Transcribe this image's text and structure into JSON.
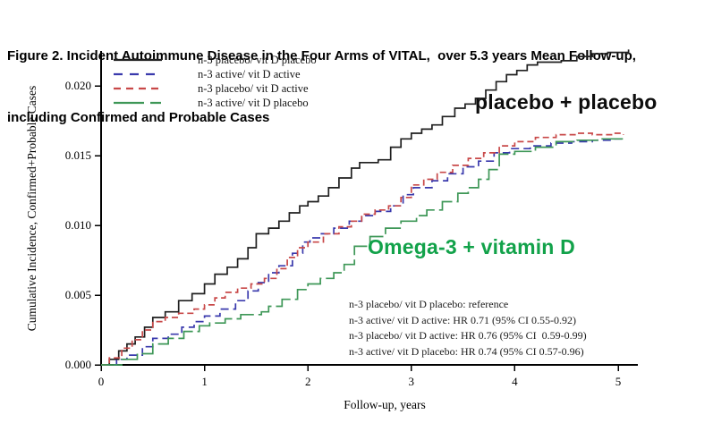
{
  "figure": {
    "title_line1": "Figure 2. Incident Autoimmune Disease in the Four Arms of VITAL,  over 5.3 years Mean Follow-up,",
    "title_line2": "including Confirmed and Probable Cases"
  },
  "chart_data": {
    "type": "line",
    "subtype": "step-cumulative-incidence",
    "title": "Figure 2. Incident Autoimmune Disease in the Four Arms of VITAL, over 5.3 years Mean Follow-up, including Confirmed and Probable Cases",
    "xlabel": "Follow-up, years",
    "ylabel": "Cumulative Incidence, Confirmed+Probable Cases",
    "xlim": [
      0,
      5.2
    ],
    "ylim": [
      0,
      0.0225
    ],
    "grid": false,
    "legend_position": "top-left",
    "x_ticks": [
      0,
      1,
      2,
      3,
      4,
      5
    ],
    "x_tick_labels": [
      "0",
      "1",
      "2",
      "3",
      "4",
      "5"
    ],
    "y_ticks": [
      0.0,
      0.005,
      0.01,
      0.015,
      0.02
    ],
    "y_tick_labels": [
      "0.000",
      "0.005",
      "0.010",
      "0.015",
      "0.020"
    ],
    "series": [
      {
        "id": "n3-placebo-vitd-placebo",
        "name": "n-3 placebo/ vit D placebo",
        "color": "#1f1f1f",
        "dash": "solid",
        "points": [
          [
            0,
            0
          ],
          [
            0.08,
            0.0004
          ],
          [
            0.17,
            0.001
          ],
          [
            0.25,
            0.0015
          ],
          [
            0.33,
            0.002
          ],
          [
            0.42,
            0.0027
          ],
          [
            0.5,
            0.0034
          ],
          [
            0.62,
            0.0038
          ],
          [
            0.75,
            0.0046
          ],
          [
            0.88,
            0.0051
          ],
          [
            1.0,
            0.0058
          ],
          [
            1.1,
            0.0065
          ],
          [
            1.22,
            0.007
          ],
          [
            1.32,
            0.0076
          ],
          [
            1.42,
            0.0084
          ],
          [
            1.5,
            0.0094
          ],
          [
            1.62,
            0.0098
          ],
          [
            1.72,
            0.0103
          ],
          [
            1.82,
            0.0109
          ],
          [
            1.92,
            0.0114
          ],
          [
            2.0,
            0.0117
          ],
          [
            2.1,
            0.0121
          ],
          [
            2.2,
            0.0127
          ],
          [
            2.3,
            0.0134
          ],
          [
            2.42,
            0.0141
          ],
          [
            2.5,
            0.0145
          ],
          [
            2.68,
            0.0147
          ],
          [
            2.8,
            0.0156
          ],
          [
            2.9,
            0.0162
          ],
          [
            3.0,
            0.0166
          ],
          [
            3.1,
            0.0169
          ],
          [
            3.2,
            0.0172
          ],
          [
            3.3,
            0.0178
          ],
          [
            3.42,
            0.0184
          ],
          [
            3.52,
            0.0187
          ],
          [
            3.62,
            0.0191
          ],
          [
            3.72,
            0.0197
          ],
          [
            3.82,
            0.0203
          ],
          [
            3.92,
            0.0208
          ],
          [
            4.02,
            0.0211
          ],
          [
            4.12,
            0.0215
          ],
          [
            4.22,
            0.0217
          ],
          [
            4.45,
            0.0218
          ],
          [
            4.6,
            0.0221
          ],
          [
            4.75,
            0.0223
          ],
          [
            4.9,
            0.0224
          ],
          [
            5.1,
            0.0226
          ]
        ]
      },
      {
        "id": "n3-active-vitd-active",
        "name": "n-3 active/ vit D active",
        "color": "#3a3aad",
        "dash": "dashed",
        "points": [
          [
            0,
            0
          ],
          [
            0.15,
            0.0004
          ],
          [
            0.25,
            0.0007
          ],
          [
            0.4,
            0.0013
          ],
          [
            0.5,
            0.0019
          ],
          [
            0.65,
            0.0022
          ],
          [
            0.78,
            0.0027
          ],
          [
            0.9,
            0.0031
          ],
          [
            1.0,
            0.0035
          ],
          [
            1.15,
            0.004
          ],
          [
            1.3,
            0.0046
          ],
          [
            1.42,
            0.0053
          ],
          [
            1.52,
            0.0059
          ],
          [
            1.62,
            0.0066
          ],
          [
            1.72,
            0.0071
          ],
          [
            1.85,
            0.008
          ],
          [
            1.95,
            0.0088
          ],
          [
            2.02,
            0.0091
          ],
          [
            2.12,
            0.0094
          ],
          [
            2.25,
            0.0098
          ],
          [
            2.4,
            0.0103
          ],
          [
            2.52,
            0.0107
          ],
          [
            2.65,
            0.011
          ],
          [
            2.8,
            0.0114
          ],
          [
            2.92,
            0.0122
          ],
          [
            3.02,
            0.0127
          ],
          [
            3.2,
            0.0132
          ],
          [
            3.35,
            0.0137
          ],
          [
            3.5,
            0.0142
          ],
          [
            3.65,
            0.0146
          ],
          [
            3.8,
            0.0152
          ],
          [
            3.95,
            0.0155
          ],
          [
            4.15,
            0.0157
          ],
          [
            4.35,
            0.0159
          ],
          [
            4.55,
            0.016
          ],
          [
            4.75,
            0.0161
          ],
          [
            4.95,
            0.0162
          ],
          [
            5.05,
            0.0163
          ]
        ]
      },
      {
        "id": "n3-placebo-vitd-active",
        "name": "n-3 placebo/ vit D active",
        "color": "#c84848",
        "dash": "dashed-short",
        "points": [
          [
            0,
            0
          ],
          [
            0.08,
            0.0005
          ],
          [
            0.2,
            0.0012
          ],
          [
            0.3,
            0.0018
          ],
          [
            0.4,
            0.0025
          ],
          [
            0.5,
            0.0031
          ],
          [
            0.62,
            0.0034
          ],
          [
            0.75,
            0.0037
          ],
          [
            0.9,
            0.004
          ],
          [
            1.0,
            0.0043
          ],
          [
            1.1,
            0.0048
          ],
          [
            1.2,
            0.0052
          ],
          [
            1.32,
            0.0055
          ],
          [
            1.45,
            0.0058
          ],
          [
            1.58,
            0.0062
          ],
          [
            1.7,
            0.0069
          ],
          [
            1.8,
            0.0077
          ],
          [
            1.9,
            0.0084
          ],
          [
            2.0,
            0.0088
          ],
          [
            2.15,
            0.0094
          ],
          [
            2.3,
            0.0099
          ],
          [
            2.42,
            0.0103
          ],
          [
            2.52,
            0.0108
          ],
          [
            2.65,
            0.0111
          ],
          [
            2.78,
            0.0114
          ],
          [
            2.9,
            0.012
          ],
          [
            3.0,
            0.0129
          ],
          [
            3.12,
            0.0133
          ],
          [
            3.25,
            0.0138
          ],
          [
            3.4,
            0.0143
          ],
          [
            3.55,
            0.0148
          ],
          [
            3.7,
            0.0152
          ],
          [
            3.85,
            0.0157
          ],
          [
            4.0,
            0.016
          ],
          [
            4.2,
            0.0163
          ],
          [
            4.4,
            0.0165
          ],
          [
            4.6,
            0.0166
          ],
          [
            4.75,
            0.0165
          ],
          [
            4.95,
            0.0166
          ],
          [
            5.05,
            0.0165
          ]
        ]
      },
      {
        "id": "n3-active-vitd-placebo",
        "name": "n-3 active/ vit D placebo",
        "color": "#3e9757",
        "dash": "long-dash",
        "points": [
          [
            0,
            0
          ],
          [
            0.2,
            0.0004
          ],
          [
            0.35,
            0.0008
          ],
          [
            0.5,
            0.0015
          ],
          [
            0.65,
            0.0019
          ],
          [
            0.8,
            0.0024
          ],
          [
            0.95,
            0.0028
          ],
          [
            1.05,
            0.003
          ],
          [
            1.2,
            0.0033
          ],
          [
            1.35,
            0.0036
          ],
          [
            1.55,
            0.0038
          ],
          [
            1.62,
            0.0042
          ],
          [
            1.75,
            0.0047
          ],
          [
            1.9,
            0.0054
          ],
          [
            2.0,
            0.0058
          ],
          [
            2.12,
            0.0062
          ],
          [
            2.25,
            0.0066
          ],
          [
            2.35,
            0.0072
          ],
          [
            2.45,
            0.0085
          ],
          [
            2.6,
            0.0092
          ],
          [
            2.75,
            0.0098
          ],
          [
            2.9,
            0.0103
          ],
          [
            3.05,
            0.0107
          ],
          [
            3.15,
            0.0111
          ],
          [
            3.3,
            0.0117
          ],
          [
            3.45,
            0.0123
          ],
          [
            3.55,
            0.0127
          ],
          [
            3.65,
            0.0133
          ],
          [
            3.75,
            0.014
          ],
          [
            3.85,
            0.0151
          ],
          [
            4.0,
            0.0153
          ],
          [
            4.2,
            0.0156
          ],
          [
            4.4,
            0.016
          ],
          [
            4.6,
            0.0161
          ],
          [
            4.8,
            0.0162
          ],
          [
            5.05,
            0.0163
          ]
        ]
      }
    ],
    "annotations": {
      "curve_labels": [
        {
          "text": "placebo + placebo",
          "color": "#0d0d0d"
        },
        {
          "text": "Omega-3 + vitamin D",
          "color": "#12a24a"
        }
      ],
      "hr_lines": [
        "n-3 placebo/ vit D placebo: reference",
        "n-3 active/ vit D active: HR 0.71 (95% CI 0.55-0.92)",
        "n-3 placebo/ vit D active: HR 0.76 (95% CI  0.59-0.99)",
        "n-3 active/ vit D placebo: HR 0.74 (95% CI 0.57-0.96)"
      ]
    }
  }
}
